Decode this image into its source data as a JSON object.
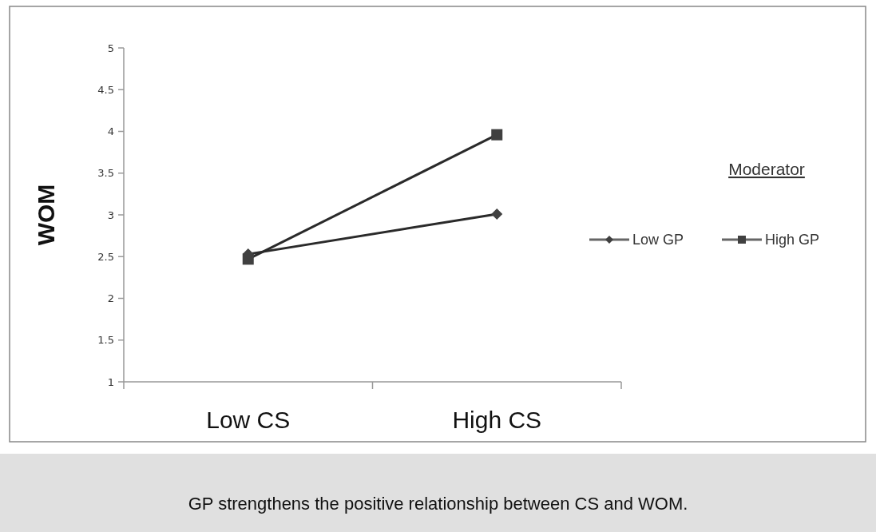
{
  "chart_data": {
    "type": "line",
    "ylabel": "WOM",
    "categories": [
      "Low CS",
      "High CS"
    ],
    "series": [
      {
        "name": "Low GP",
        "color": "#404040",
        "values": [
          2.53,
          3.01
        ],
        "marker": "diamond"
      },
      {
        "name": "High GP",
        "color": "#404040",
        "values": [
          2.47,
          3.96
        ],
        "marker": "square"
      }
    ],
    "ylim": [
      1,
      5
    ],
    "yticks": [
      1,
      1.5,
      2,
      2.5,
      3,
      3.5,
      4,
      4.5,
      5
    ],
    "grid": false,
    "legend": "right",
    "legend_title": "Moderator",
    "annotations": [
      "GP strengthens the positive relationship between CS and WOM."
    ]
  }
}
